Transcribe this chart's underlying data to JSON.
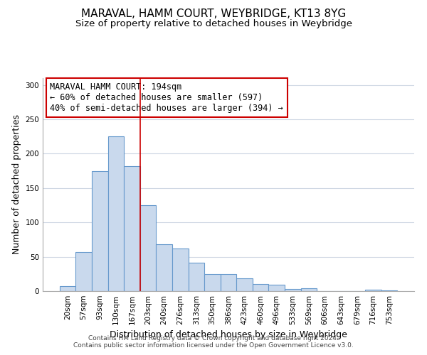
{
  "title": "MARAVAL, HAMM COURT, WEYBRIDGE, KT13 8YG",
  "subtitle": "Size of property relative to detached houses in Weybridge",
  "xlabel": "Distribution of detached houses by size in Weybridge",
  "ylabel": "Number of detached properties",
  "bar_labels": [
    "20sqm",
    "57sqm",
    "93sqm",
    "130sqm",
    "167sqm",
    "203sqm",
    "240sqm",
    "276sqm",
    "313sqm",
    "350sqm",
    "386sqm",
    "423sqm",
    "460sqm",
    "496sqm",
    "533sqm",
    "569sqm",
    "606sqm",
    "643sqm",
    "679sqm",
    "716sqm",
    "753sqm"
  ],
  "bar_values": [
    7,
    57,
    175,
    225,
    182,
    125,
    68,
    62,
    41,
    25,
    25,
    19,
    10,
    9,
    3,
    4,
    0,
    0,
    0,
    2,
    1
  ],
  "bar_color": "#c9d9ed",
  "bar_edge_color": "#6699cc",
  "bar_edge_width": 0.8,
  "grid_color": "#d0d8e4",
  "ylim": [
    0,
    310
  ],
  "red_line_index": 5,
  "red_line_color": "#cc0000",
  "annotation_title": "MARAVAL HAMM COURT: 194sqm",
  "annotation_line1": "← 60% of detached houses are smaller (597)",
  "annotation_line2": "40% of semi-detached houses are larger (394) →",
  "annotation_box_color": "#ffffff",
  "annotation_box_edge": "#cc0000",
  "footer_line1": "Contains HM Land Registry data © Crown copyright and database right 2024.",
  "footer_line2": "Contains public sector information licensed under the Open Government Licence v3.0.",
  "title_fontsize": 11,
  "subtitle_fontsize": 9.5,
  "axis_label_fontsize": 9,
  "tick_fontsize": 7.5,
  "annotation_fontsize": 8.5,
  "footer_fontsize": 6.5
}
